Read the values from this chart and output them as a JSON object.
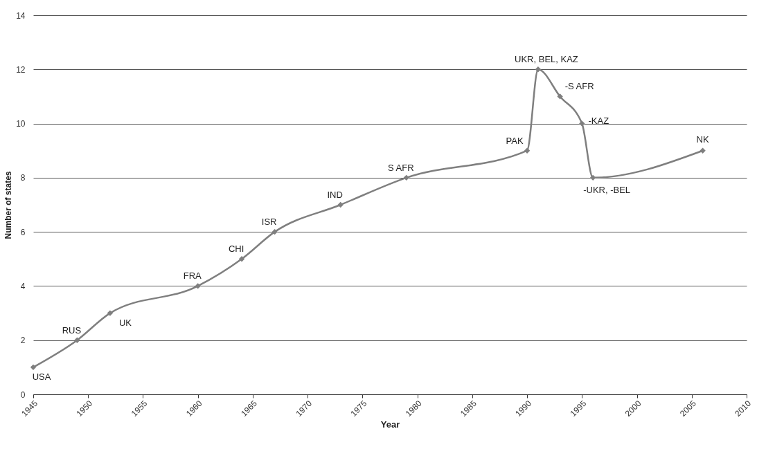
{
  "chart_data": {
    "type": "line",
    "xlabel": "Year",
    "ylabel": "Number of states",
    "x": [
      1945,
      1949,
      1952,
      1960,
      1964,
      1967,
      1973,
      1979,
      1990,
      1991,
      1993,
      1995,
      1996,
      2006
    ],
    "series": [
      {
        "color": "#7f7f7f",
        "values": [
          1,
          2,
          3,
          4,
          5,
          6,
          7,
          8,
          9,
          12,
          11,
          10,
          8,
          9
        ]
      }
    ],
    "xlim": [
      1945,
      2010
    ],
    "xticks": [
      1945,
      1950,
      1955,
      1960,
      1965,
      1970,
      1975,
      1980,
      1985,
      1990,
      1995,
      2000,
      2005,
      2010
    ],
    "ylim": [
      0,
      14
    ],
    "yticks": [
      0,
      2,
      4,
      6,
      8,
      10,
      12,
      14
    ],
    "grid": "y",
    "marker": "diamond",
    "line_style": "solid",
    "annotations": [
      {
        "text": "USA",
        "x": 1945,
        "y": 1
      },
      {
        "text": "RUS",
        "x": 1949,
        "y": 2
      },
      {
        "text": "UK",
        "x": 1952,
        "y": 3
      },
      {
        "text": "FRA",
        "x": 1960,
        "y": 4
      },
      {
        "text": "CHI",
        "x": 1964,
        "y": 5
      },
      {
        "text": "ISR",
        "x": 1967,
        "y": 6
      },
      {
        "text": "IND",
        "x": 1973,
        "y": 7
      },
      {
        "text": "S AFR",
        "x": 1979,
        "y": 8
      },
      {
        "text": "PAK",
        "x": 1990,
        "y": 9
      },
      {
        "text": "UKR, BEL, KAZ",
        "x": 1991,
        "y": 12
      },
      {
        "text": "-S AFR",
        "x": 1993,
        "y": 11
      },
      {
        "text": "-KAZ",
        "x": 1995,
        "y": 10
      },
      {
        "text": "-UKR, -BEL",
        "x": 1996,
        "y": 8
      },
      {
        "text": "NK",
        "x": 2006,
        "y": 9
      }
    ]
  }
}
